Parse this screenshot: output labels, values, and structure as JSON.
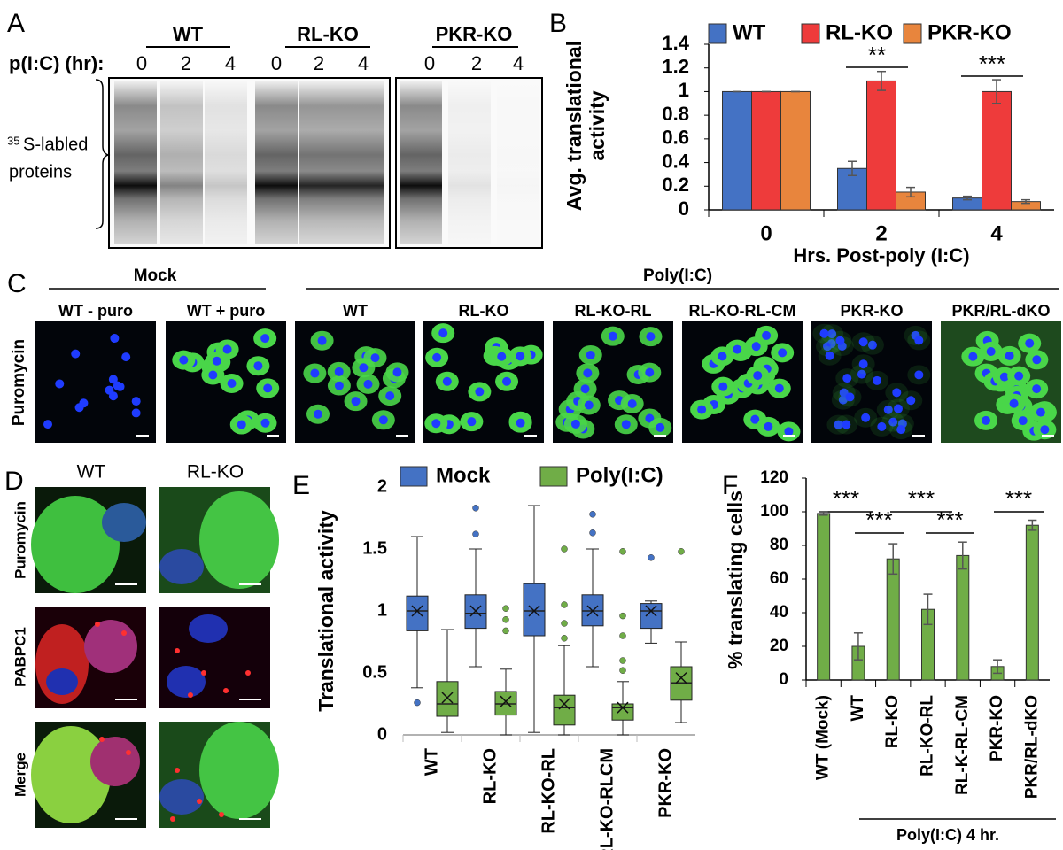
{
  "panel_a": {
    "letter": "A",
    "condition_label": "p(I:C) (hr):",
    "groups": [
      {
        "name": "WT",
        "lanes": [
          0,
          2,
          4
        ]
      },
      {
        "name": "RL-KO",
        "lanes": [
          0,
          2,
          4
        ]
      },
      {
        "name": "PKR-KO",
        "lanes": [
          0,
          2,
          4
        ]
      }
    ],
    "side_label": {
      "superscript": "35",
      "lines": [
        "S-labled",
        "proteins"
      ]
    }
  },
  "chart_data": [
    {
      "type": "bar",
      "panel_label": "B",
      "categories": [
        0,
        2,
        4
      ],
      "x_label": "Hrs. Post-poly (I:C)",
      "y_label": [
        "Avg. translational",
        "activity"
      ],
      "ylim": [
        0,
        1.4
      ],
      "yticks": [
        0,
        0.2,
        0.4,
        0.6,
        0.8,
        1,
        1.2,
        1.4
      ],
      "legend": "top",
      "series": [
        {
          "name": "WT",
          "color": "#4472c4",
          "values": [
            1,
            0.35,
            0.1
          ],
          "errors": [
            0,
            0.06,
            0.015
          ]
        },
        {
          "name": "RL-KO",
          "color": "#ee3b3b",
          "values": [
            1,
            1.09,
            1.0
          ],
          "errors": [
            0,
            0.08,
            0.1
          ]
        },
        {
          "name": "PKR-KO",
          "color": "#e8853d",
          "values": [
            1,
            0.15,
            0.07
          ],
          "errors": [
            0,
            0.04,
            0.015
          ]
        }
      ],
      "annotations": [
        "**",
        "***"
      ]
    },
    {
      "type": "box",
      "panel_label": "E",
      "y_label": "Translational activity",
      "categories": [
        "WT",
        "RL-KO",
        "RL-KO-RL",
        "RL-KO-RLCM",
        "PKR-KO"
      ],
      "ylim": [
        0,
        2
      ],
      "yticks": [
        0,
        0.5,
        1,
        1.5,
        2
      ],
      "legend": "top",
      "series": [
        {
          "name": "Mock",
          "color": "#4472c4",
          "values": [
            {
              "min": 0.38,
              "q1": 0.84,
              "median": 1.0,
              "q3": 1.12,
              "max": 1.6,
              "mean": 1.0,
              "outliers": [
                0.26
              ]
            },
            {
              "min": 0.55,
              "q1": 0.86,
              "median": 0.98,
              "q3": 1.13,
              "max": 1.5,
              "mean": 1.0,
              "outliers": [
                1.62,
                1.83
              ]
            },
            {
              "min": 0.02,
              "q1": 0.8,
              "median": 1.0,
              "q3": 1.22,
              "max": 1.85,
              "mean": 1.0,
              "outliers": []
            },
            {
              "min": 0.55,
              "q1": 0.88,
              "median": 1.0,
              "q3": 1.13,
              "max": 1.5,
              "mean": 1.0,
              "outliers": [
                1.63,
                1.78
              ]
            },
            {
              "min": 0.74,
              "q1": 0.86,
              "median": 1.0,
              "q3": 1.06,
              "max": 1.08,
              "mean": 1.0,
              "outliers": [
                1.43
              ]
            }
          ]
        },
        {
          "name": "Poly(I:C)",
          "color": "#70ad47",
          "values": [
            {
              "min": 0.02,
              "q1": 0.15,
              "median": 0.25,
              "q3": 0.43,
              "max": 0.85,
              "mean": 0.3,
              "outliers": []
            },
            {
              "min": 0.0,
              "q1": 0.16,
              "median": 0.25,
              "q3": 0.35,
              "max": 0.53,
              "mean": 0.27,
              "outliers": [
                0.84,
                0.93,
                1.02
              ]
            },
            {
              "min": 0.0,
              "q1": 0.08,
              "median": 0.22,
              "q3": 0.32,
              "max": 0.72,
              "mean": 0.25,
              "outliers": [
                0.78,
                0.9,
                1.05,
                1.5
              ]
            },
            {
              "min": 0.0,
              "q1": 0.12,
              "median": 0.22,
              "q3": 0.25,
              "max": 0.43,
              "mean": 0.22,
              "outliers": [
                0.52,
                0.6,
                0.8,
                0.96,
                1.48
              ]
            },
            {
              "min": 0.1,
              "q1": 0.28,
              "median": 0.42,
              "q3": 0.55,
              "max": 0.75,
              "mean": 0.46,
              "outliers": [
                1.48
              ]
            }
          ]
        }
      ]
    },
    {
      "type": "bar",
      "panel_label": "F",
      "y_label": "% translating cells",
      "categories": [
        "WT (Mock)",
        "WT",
        "RL-KO",
        "RL-KO-RL",
        "RL-K-RL-CM",
        "PKR-KO",
        "PKR/RL-dKO"
      ],
      "values": [
        99,
        20,
        72,
        42,
        74,
        8,
        92
      ],
      "errors": [
        1,
        8,
        9,
        9,
        8,
        4,
        3
      ],
      "color": "#70ad47",
      "ylim": [
        0,
        120
      ],
      "yticks": [
        0,
        20,
        40,
        60,
        80,
        100,
        120
      ],
      "annotations": [
        "***",
        "***",
        "***",
        "***",
        "***"
      ],
      "group_label": "Poly(I:C) 4 hr."
    }
  ],
  "panel_c": {
    "letter": "C",
    "groups": [
      "Mock",
      "Poly(I:C)"
    ],
    "columns": [
      "WT - puro",
      "WT + puro",
      "WT",
      "RL-KO",
      "RL-KO-RL",
      "RL-KO-RL-CM",
      "PKR-KO",
      "PKR/RL-dKO"
    ],
    "row_label": "Puromycin"
  },
  "panel_d": {
    "letter": "D",
    "columns": [
      "WT",
      "RL-KO"
    ],
    "rows": [
      "Puromycin",
      "PABPC1",
      "Merge"
    ]
  }
}
